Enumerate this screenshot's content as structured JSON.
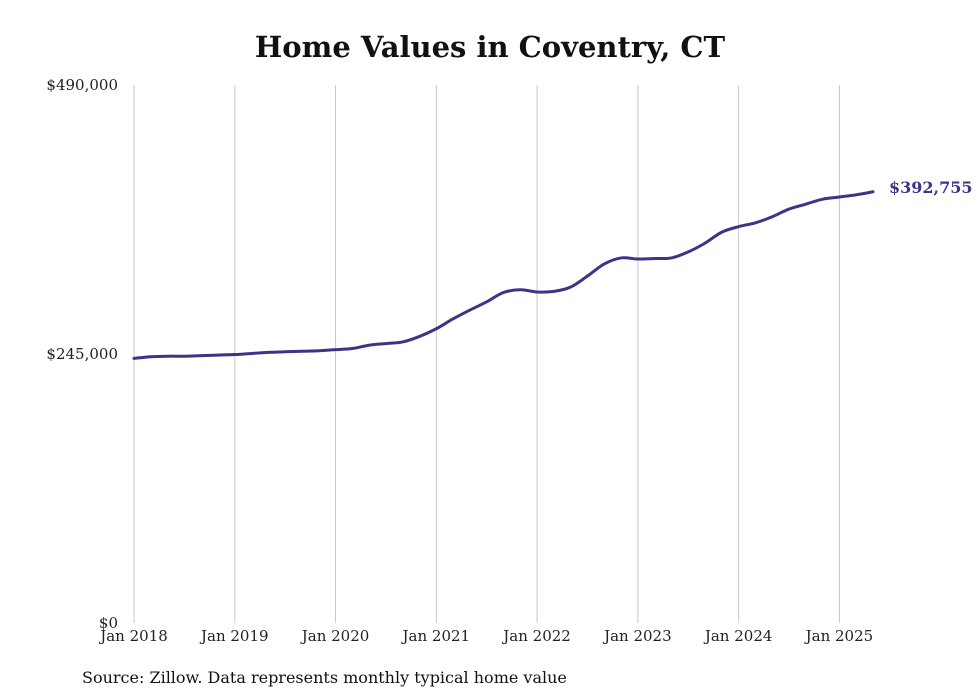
{
  "chart_data": {
    "type": "line",
    "title": "Home Values in Coventry, CT",
    "xlabel": "",
    "ylabel": "",
    "x_ticks": [
      "Jan 2018",
      "Jan 2019",
      "Jan 2020",
      "Jan 2021",
      "Jan 2022",
      "Jan 2023",
      "Jan 2024",
      "Jan 2025"
    ],
    "y_ticks": [
      {
        "value": 0,
        "label": "$0"
      },
      {
        "value": 245000,
        "label": "$245,000"
      },
      {
        "value": 490000,
        "label": "$490,000"
      }
    ],
    "ylim": [
      0,
      490000
    ],
    "xlim": [
      "2018-01",
      "2025-05"
    ],
    "grid": "vertical",
    "color": "#3b3488",
    "end_label": "$392,755",
    "series": [
      {
        "x": [
          "2018-01",
          "2018-03",
          "2018-05",
          "2018-07",
          "2018-09",
          "2018-11",
          "2019-01",
          "2019-03",
          "2019-05",
          "2019-07",
          "2019-09",
          "2019-11",
          "2020-01",
          "2020-03",
          "2020-05",
          "2020-07",
          "2020-09",
          "2020-11",
          "2021-01",
          "2021-03",
          "2021-05",
          "2021-07",
          "2021-09",
          "2021-11",
          "2022-01",
          "2022-03",
          "2022-05",
          "2022-07",
          "2022-09",
          "2022-11",
          "2023-01",
          "2023-03",
          "2023-05",
          "2023-07",
          "2023-09",
          "2023-11",
          "2024-01",
          "2024-03",
          "2024-05",
          "2024-07",
          "2024-09",
          "2024-11",
          "2025-01",
          "2025-03",
          "2025-05"
        ],
        "values": [
          241000,
          242500,
          243000,
          243000,
          243500,
          244000,
          244500,
          245500,
          246500,
          247000,
          247500,
          248000,
          249000,
          250000,
          253000,
          254500,
          256000,
          261000,
          268000,
          277000,
          285000,
          292500,
          301000,
          303500,
          301500,
          302000,
          306000,
          316000,
          327000,
          332500,
          331500,
          332000,
          332500,
          338000,
          346000,
          356000,
          361000,
          364500,
          370000,
          377000,
          381500,
          386000,
          388000,
          390000,
          392755
        ]
      }
    ]
  },
  "footer": {
    "source": "Source: Zillow. Data represents monthly typical home value"
  }
}
